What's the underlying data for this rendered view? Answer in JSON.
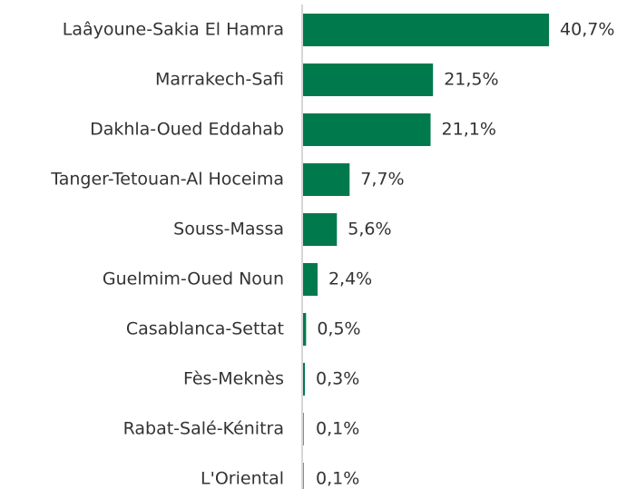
{
  "chart_data": {
    "type": "bar",
    "orientation": "horizontal",
    "categories": [
      "Laâyoune-Sakia El Hamra",
      "Marrakech-Safi",
      "Dakhla-Oued Eddahab",
      "Tanger-Tetouan-Al Hoceima",
      "Souss-Massa",
      "Guelmim-Oued Noun",
      "Casablanca-Settat",
      "Fès-Meknès",
      "Rabat-Salé-Kénitra",
      "L'Oriental"
    ],
    "values": [
      40.7,
      21.5,
      21.1,
      7.7,
      5.6,
      2.4,
      0.5,
      0.3,
      0.1,
      0.1
    ],
    "value_labels": [
      "40,7%",
      "21,5%",
      "21,1%",
      "7,7%",
      "5,6%",
      "2,4%",
      "0,5%",
      "0,3%",
      "0,1%",
      "0,1%"
    ],
    "color": "#007a4d"
  }
}
